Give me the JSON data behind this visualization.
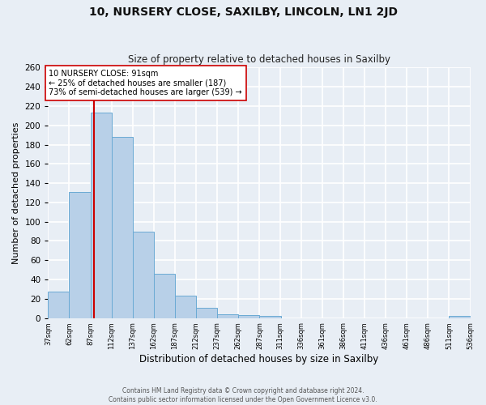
{
  "title": "10, NURSERY CLOSE, SAXILBY, LINCOLN, LN1 2JD",
  "subtitle": "Size of property relative to detached houses in Saxilby",
  "xlabel": "Distribution of detached houses by size in Saxilby",
  "ylabel": "Number of detached properties",
  "bar_edges": [
    37,
    62,
    87,
    112,
    137,
    162,
    187,
    212,
    237,
    262,
    287,
    311,
    336,
    361,
    386,
    411,
    436,
    461,
    486,
    511,
    536
  ],
  "bar_values": [
    27,
    131,
    213,
    188,
    90,
    46,
    23,
    11,
    4,
    3,
    2,
    0,
    0,
    0,
    0,
    0,
    0,
    0,
    0,
    2
  ],
  "bar_color": "#b8d0e8",
  "bar_edge_color": "#6aaad4",
  "ylim": [
    0,
    260
  ],
  "yticks": [
    0,
    20,
    40,
    60,
    80,
    100,
    120,
    140,
    160,
    180,
    200,
    220,
    240,
    260
  ],
  "vline_x": 91,
  "vline_color": "#cc0000",
  "annotation_text": "10 NURSERY CLOSE: 91sqm\n← 25% of detached houses are smaller (187)\n73% of semi-detached houses are larger (539) →",
  "annotation_box_color": "#ffffff",
  "annotation_box_edgecolor": "#cc0000",
  "footnote1": "Contains HM Land Registry data © Crown copyright and database right 2024.",
  "footnote2": "Contains public sector information licensed under the Open Government Licence v3.0.",
  "background_color": "#e8eef5",
  "grid_color": "#ffffff",
  "title_fontsize": 10,
  "subtitle_fontsize": 8.5,
  "xlabel_fontsize": 8.5,
  "ylabel_fontsize": 8,
  "footnote_fontsize": 5.5,
  "tick_labels": [
    "37sqm",
    "62sqm",
    "87sqm",
    "112sqm",
    "137sqm",
    "162sqm",
    "187sqm",
    "212sqm",
    "237sqm",
    "262sqm",
    "287sqm",
    "311sqm",
    "336sqm",
    "361sqm",
    "386sqm",
    "411sqm",
    "436sqm",
    "461sqm",
    "486sqm",
    "511sqm",
    "536sqm"
  ]
}
